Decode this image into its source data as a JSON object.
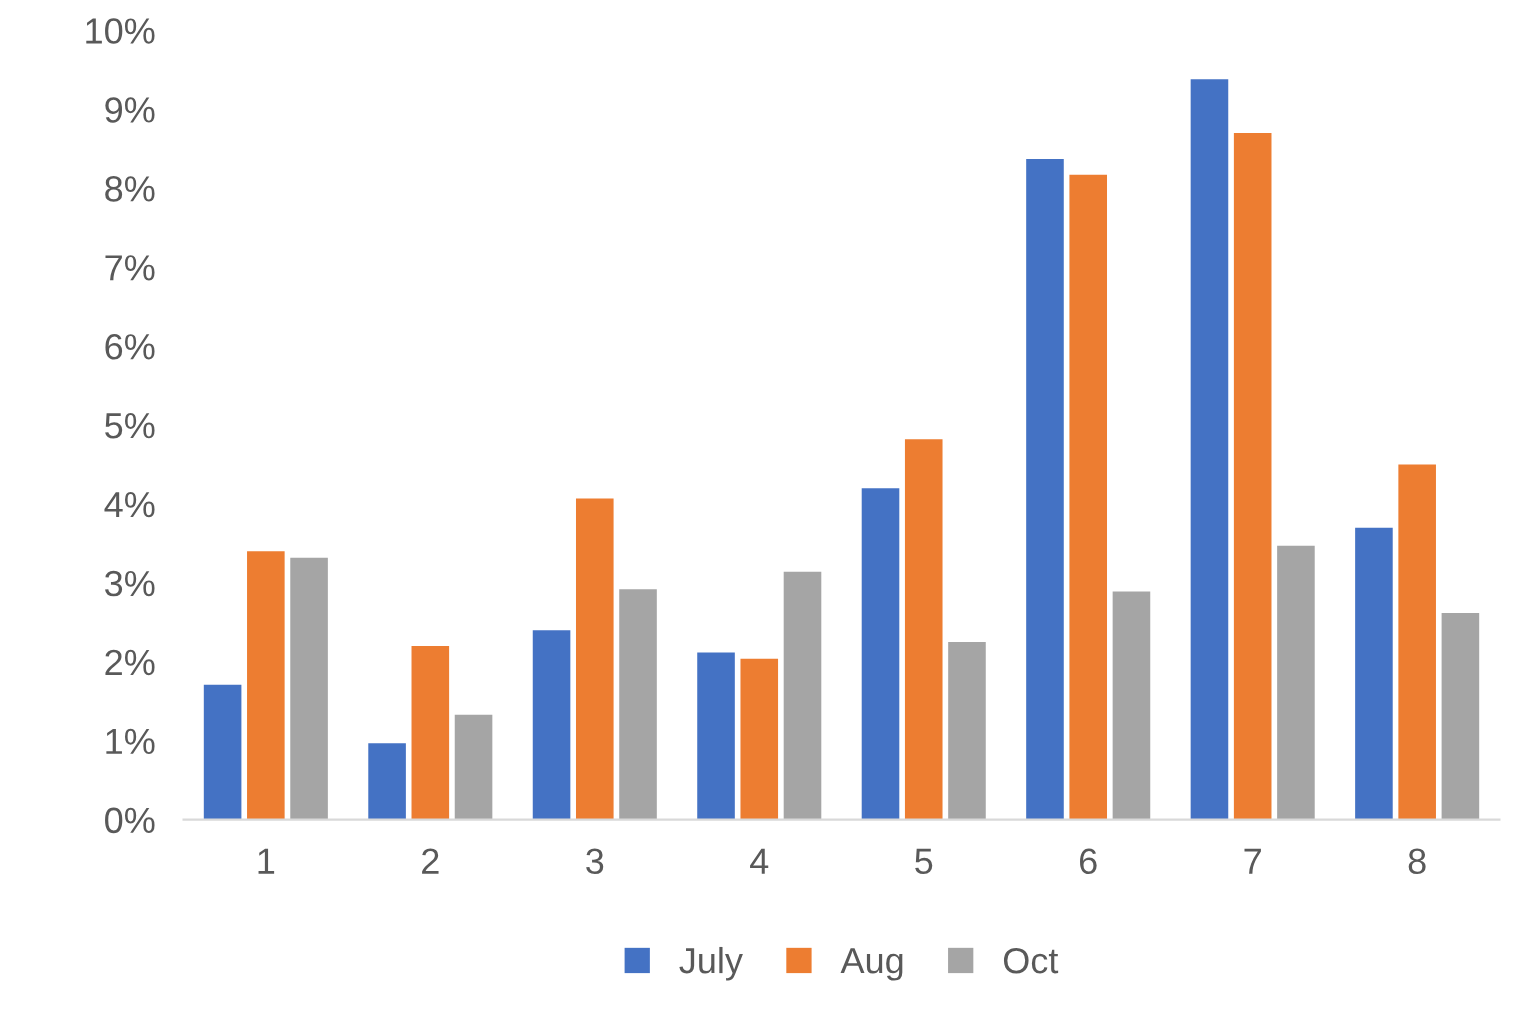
{
  "chart_data": {
    "type": "bar",
    "categories": [
      "1",
      "2",
      "3",
      "4",
      "5",
      "6",
      "7",
      "8"
    ],
    "series": [
      {
        "name": "July",
        "color": "#4472c4",
        "values": [
          1.71,
          0.97,
          2.4,
          2.12,
          4.2,
          8.37,
          9.38,
          3.7
        ]
      },
      {
        "name": "Aug",
        "color": "#ed7d31",
        "values": [
          3.4,
          2.2,
          4.07,
          2.04,
          4.82,
          8.17,
          8.7,
          4.5
        ]
      },
      {
        "name": "Oct",
        "color": "#a5a5a5",
        "values": [
          3.32,
          1.33,
          2.92,
          3.14,
          2.25,
          2.89,
          3.47,
          2.62
        ]
      }
    ],
    "ylim": [
      0,
      10
    ],
    "yticks": [
      {
        "value": 0,
        "label": "0%"
      },
      {
        "value": 1,
        "label": "1%"
      },
      {
        "value": 2,
        "label": "2%"
      },
      {
        "value": 3,
        "label": "3%"
      },
      {
        "value": 4,
        "label": "4%"
      },
      {
        "value": 5,
        "label": "5%"
      },
      {
        "value": 6,
        "label": "6%"
      },
      {
        "value": 7,
        "label": "7%"
      },
      {
        "value": 8,
        "label": "8%"
      },
      {
        "value": 9,
        "label": "9%"
      },
      {
        "value": 10,
        "label": "10%"
      }
    ],
    "grid": false,
    "legend": "bottom"
  }
}
